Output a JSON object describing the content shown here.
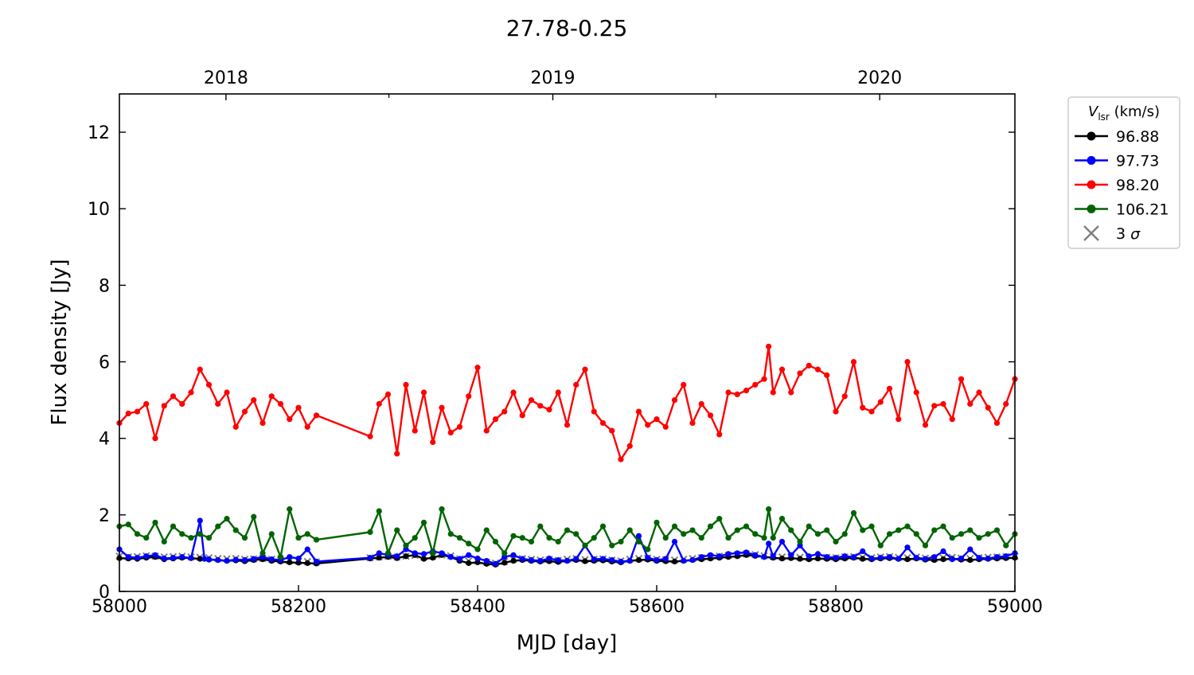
{
  "chart_data": {
    "type": "line",
    "title": "27.78-0.25",
    "xlabel": "MJD [day]",
    "ylabel": "Flux density [Jy]",
    "xlim": [
      58000,
      59000
    ],
    "ylim": [
      0,
      13
    ],
    "xticks": [
      58000,
      58200,
      58400,
      58600,
      58800,
      59000
    ],
    "yticks": [
      0,
      2,
      4,
      6,
      8,
      10,
      12
    ],
    "top_axis": {
      "ticks": [
        {
          "label": "2018",
          "mjd": 58119
        },
        {
          "label": "2019",
          "mjd": 58484
        },
        {
          "label": "2020",
          "mjd": 58849
        }
      ],
      "minor_ticks_mjd": [
        58301,
        58666
      ]
    },
    "grid": false,
    "legend": {
      "position": "outside-right-top",
      "title_main": "V",
      "title_sub": "lsr",
      "title_unit": " (km/s)"
    },
    "series": [
      {
        "name": "96.88",
        "color": "#000000",
        "marker": "circle",
        "x": [
          58000,
          58010,
          58020,
          58030,
          58040,
          58050,
          58060,
          58070,
          58080,
          58090,
          58100,
          58110,
          58120,
          58130,
          58140,
          58150,
          58160,
          58170,
          58180,
          58190,
          58200,
          58210,
          58220,
          58280,
          58290,
          58300,
          58310,
          58320,
          58330,
          58340,
          58350,
          58360,
          58370,
          58380,
          58390,
          58400,
          58410,
          58420,
          58430,
          58440,
          58450,
          58460,
          58470,
          58480,
          58490,
          58500,
          58510,
          58520,
          58530,
          58540,
          58550,
          58560,
          58570,
          58580,
          58590,
          58600,
          58610,
          58620,
          58630,
          58640,
          58650,
          58660,
          58670,
          58680,
          58690,
          58700,
          58710,
          58720,
          58730,
          58740,
          58750,
          58760,
          58770,
          58780,
          58790,
          58800,
          58810,
          58820,
          58830,
          58840,
          58850,
          58860,
          58870,
          58880,
          58890,
          58900,
          58910,
          58920,
          58930,
          58940,
          58950,
          58960,
          58970,
          58980,
          58990,
          59000
        ],
        "y": [
          0.87,
          0.86,
          0.85,
          0.88,
          0.9,
          0.84,
          0.86,
          0.88,
          0.87,
          0.85,
          0.83,
          0.82,
          0.8,
          0.81,
          0.79,
          0.82,
          0.84,
          0.8,
          0.78,
          0.76,
          0.75,
          0.74,
          0.73,
          0.86,
          0.88,
          0.9,
          0.87,
          0.92,
          0.95,
          0.85,
          0.88,
          0.95,
          0.9,
          0.8,
          0.74,
          0.76,
          0.72,
          0.7,
          0.75,
          0.8,
          0.82,
          0.8,
          0.78,
          0.79,
          0.77,
          0.8,
          0.82,
          0.79,
          0.8,
          0.81,
          0.78,
          0.76,
          0.8,
          0.82,
          0.83,
          0.8,
          0.79,
          0.78,
          0.8,
          0.82,
          0.84,
          0.86,
          0.88,
          0.9,
          0.92,
          0.95,
          0.93,
          0.9,
          0.88,
          0.86,
          0.87,
          0.85,
          0.84,
          0.86,
          0.85,
          0.84,
          0.86,
          0.88,
          0.85,
          0.84,
          0.86,
          0.87,
          0.85,
          0.84,
          0.86,
          0.83,
          0.82,
          0.84,
          0.85,
          0.83,
          0.82,
          0.84,
          0.85,
          0.86,
          0.87,
          0.88
        ]
      },
      {
        "name": "97.73",
        "color": "#0000ff",
        "marker": "circle",
        "x": [
          58000,
          58010,
          58020,
          58030,
          58040,
          58050,
          58060,
          58070,
          58080,
          58090,
          58095,
          58100,
          58110,
          58120,
          58130,
          58140,
          58150,
          58160,
          58170,
          58180,
          58190,
          58200,
          58210,
          58220,
          58280,
          58290,
          58300,
          58310,
          58320,
          58330,
          58340,
          58350,
          58360,
          58370,
          58380,
          58390,
          58400,
          58410,
          58420,
          58430,
          58440,
          58450,
          58460,
          58470,
          58480,
          58490,
          58500,
          58510,
          58520,
          58530,
          58540,
          58550,
          58560,
          58570,
          58580,
          58590,
          58600,
          58610,
          58620,
          58630,
          58640,
          58650,
          58660,
          58670,
          58680,
          58690,
          58700,
          58710,
          58720,
          58725,
          58730,
          58740,
          58750,
          58760,
          58770,
          58780,
          58790,
          58800,
          58810,
          58820,
          58830,
          58840,
          58850,
          58860,
          58870,
          58880,
          58890,
          58900,
          58910,
          58920,
          58930,
          58940,
          58950,
          58960,
          58970,
          58980,
          58990,
          59000
        ],
        "y": [
          1.1,
          0.9,
          0.88,
          0.92,
          0.95,
          0.86,
          0.88,
          0.9,
          0.87,
          1.85,
          0.85,
          0.84,
          0.82,
          0.8,
          0.83,
          0.82,
          0.85,
          0.9,
          0.84,
          0.82,
          0.9,
          0.86,
          1.1,
          0.78,
          0.88,
          1.0,
          0.95,
          0.92,
          1.1,
          1.0,
          0.98,
          1.05,
          1.0,
          0.9,
          0.85,
          0.95,
          0.86,
          0.8,
          0.72,
          0.9,
          0.95,
          0.85,
          0.82,
          0.8,
          0.86,
          0.82,
          0.8,
          0.85,
          1.2,
          0.84,
          0.85,
          0.82,
          0.78,
          0.8,
          1.45,
          0.88,
          0.82,
          0.85,
          1.3,
          0.8,
          0.82,
          0.9,
          0.95,
          0.92,
          0.98,
          1.0,
          1.02,
          0.95,
          0.9,
          1.25,
          0.92,
          1.3,
          0.95,
          1.2,
          0.92,
          0.98,
          0.9,
          0.88,
          0.92,
          0.9,
          1.05,
          0.86,
          0.88,
          0.9,
          0.85,
          1.15,
          0.88,
          0.85,
          0.9,
          1.05,
          0.84,
          0.86,
          1.1,
          0.88,
          0.86,
          0.9,
          0.92,
          1.0
        ]
      },
      {
        "name": "98.20",
        "color": "#ff0000",
        "marker": "circle",
        "x": [
          58000,
          58010,
          58020,
          58030,
          58040,
          58050,
          58060,
          58070,
          58080,
          58090,
          58100,
          58110,
          58120,
          58130,
          58140,
          58150,
          58160,
          58170,
          58180,
          58190,
          58200,
          58210,
          58220,
          58280,
          58290,
          58300,
          58310,
          58320,
          58330,
          58340,
          58350,
          58360,
          58370,
          58380,
          58390,
          58400,
          58410,
          58420,
          58430,
          58440,
          58450,
          58460,
          58470,
          58480,
          58490,
          58500,
          58510,
          58520,
          58530,
          58540,
          58550,
          58560,
          58570,
          58580,
          58590,
          58600,
          58610,
          58620,
          58630,
          58640,
          58650,
          58660,
          58670,
          58680,
          58690,
          58700,
          58710,
          58720,
          58725,
          58730,
          58740,
          58750,
          58760,
          58770,
          58780,
          58790,
          58800,
          58810,
          58820,
          58830,
          58840,
          58850,
          58860,
          58870,
          58880,
          58890,
          58900,
          58910,
          58920,
          58930,
          58940,
          58950,
          58960,
          58970,
          58980,
          58990,
          59000
        ],
        "y": [
          4.4,
          4.65,
          4.7,
          4.9,
          4.0,
          4.85,
          5.1,
          4.9,
          5.2,
          5.8,
          5.4,
          4.9,
          5.2,
          4.3,
          4.7,
          5.0,
          4.4,
          5.1,
          4.9,
          4.5,
          4.8,
          4.3,
          4.6,
          4.05,
          4.9,
          5.15,
          3.6,
          5.4,
          4.2,
          5.2,
          3.9,
          4.8,
          4.15,
          4.3,
          5.1,
          5.85,
          4.2,
          4.5,
          4.7,
          5.2,
          4.6,
          5.0,
          4.85,
          4.75,
          5.2,
          4.35,
          5.4,
          5.8,
          4.7,
          4.4,
          4.2,
          3.45,
          3.8,
          4.7,
          4.35,
          4.5,
          4.3,
          5.0,
          5.4,
          4.4,
          4.9,
          4.6,
          4.1,
          5.2,
          5.15,
          5.25,
          5.4,
          5.55,
          6.4,
          5.2,
          5.8,
          5.2,
          5.7,
          5.9,
          5.8,
          5.65,
          4.7,
          5.1,
          6.0,
          4.8,
          4.7,
          4.95,
          5.3,
          4.5,
          6.0,
          5.2,
          4.35,
          4.85,
          4.9,
          4.5,
          5.55,
          4.9,
          5.2,
          4.8,
          4.4,
          4.9,
          5.55
        ]
      },
      {
        "name": "106.21",
        "color": "#006400",
        "marker": "circle",
        "x": [
          58000,
          58010,
          58020,
          58030,
          58040,
          58050,
          58060,
          58070,
          58080,
          58090,
          58100,
          58110,
          58120,
          58130,
          58140,
          58150,
          58160,
          58170,
          58180,
          58190,
          58200,
          58210,
          58220,
          58280,
          58290,
          58300,
          58310,
          58320,
          58330,
          58340,
          58350,
          58360,
          58370,
          58380,
          58390,
          58400,
          58410,
          58420,
          58430,
          58440,
          58450,
          58460,
          58470,
          58480,
          58490,
          58500,
          58510,
          58520,
          58530,
          58540,
          58550,
          58560,
          58570,
          58580,
          58590,
          58600,
          58610,
          58620,
          58630,
          58640,
          58650,
          58660,
          58670,
          58680,
          58690,
          58700,
          58710,
          58720,
          58725,
          58730,
          58740,
          58750,
          58760,
          58770,
          58780,
          58790,
          58800,
          58810,
          58820,
          58830,
          58840,
          58850,
          58860,
          58870,
          58880,
          58890,
          58900,
          58910,
          58920,
          58930,
          58940,
          58950,
          58960,
          58970,
          58980,
          58990,
          59000
        ],
        "y": [
          1.7,
          1.75,
          1.5,
          1.4,
          1.8,
          1.3,
          1.7,
          1.5,
          1.4,
          1.5,
          1.4,
          1.7,
          1.9,
          1.6,
          1.4,
          1.95,
          1.0,
          1.5,
          0.9,
          2.15,
          1.4,
          1.5,
          1.35,
          1.55,
          2.1,
          1.0,
          1.6,
          1.2,
          1.4,
          1.8,
          1.0,
          2.15,
          1.5,
          1.4,
          1.25,
          1.1,
          1.6,
          1.3,
          1.0,
          1.45,
          1.4,
          1.3,
          1.7,
          1.4,
          1.3,
          1.6,
          1.5,
          1.2,
          1.4,
          1.7,
          1.2,
          1.3,
          1.6,
          1.3,
          1.1,
          1.8,
          1.4,
          1.7,
          1.5,
          1.6,
          1.4,
          1.7,
          1.9,
          1.4,
          1.6,
          1.7,
          1.5,
          1.4,
          2.15,
          1.4,
          1.9,
          1.6,
          1.3,
          1.7,
          1.5,
          1.6,
          1.3,
          1.5,
          2.05,
          1.6,
          1.7,
          1.2,
          1.5,
          1.6,
          1.7,
          1.5,
          1.2,
          1.6,
          1.7,
          1.4,
          1.5,
          1.6,
          1.4,
          1.5,
          1.6,
          1.2,
          1.5
        ]
      },
      {
        "name": "3 σ",
        "color": "#808080",
        "marker": "x",
        "line": false,
        "x": [
          58000,
          58010,
          58020,
          58030,
          58040,
          58050,
          58060,
          58070,
          58080,
          58090,
          58100,
          58110,
          58120,
          58130,
          58140,
          58150,
          58160,
          58170,
          58180,
          58190,
          58200,
          58210,
          58220,
          58280,
          58290,
          58300,
          58310,
          58320,
          58330,
          58340,
          58350,
          58360,
          58370,
          58380,
          58390,
          58400,
          58410,
          58420,
          58430,
          58440,
          58450,
          58460,
          58470,
          58480,
          58490,
          58500,
          58510,
          58520,
          58530,
          58540,
          58550,
          58560,
          58570,
          58580,
          58590,
          58600,
          58610,
          58620,
          58630,
          58640,
          58650,
          58660,
          58670,
          58680,
          58690,
          58700,
          58710,
          58720,
          58730,
          58740,
          58750,
          58760,
          58770,
          58780,
          58790,
          58800,
          58810,
          58820,
          58830,
          58840,
          58850,
          58860,
          58870,
          58880,
          58890,
          58900,
          58910,
          58920,
          58930,
          58940,
          58950,
          58960,
          58970,
          58980,
          58990,
          59000
        ],
        "y": [
          0.92,
          0.9,
          0.91,
          0.93,
          0.92,
          0.9,
          0.91,
          0.92,
          0.9,
          0.89,
          0.88,
          0.86,
          0.85,
          0.86,
          0.84,
          0.85,
          0.86,
          0.84,
          0.82,
          0.8,
          0.79,
          0.78,
          0.77,
          0.88,
          0.9,
          0.92,
          0.9,
          0.92,
          0.94,
          0.9,
          0.92,
          0.95,
          0.93,
          0.85,
          0.8,
          0.8,
          0.76,
          0.74,
          0.78,
          0.84,
          0.86,
          0.84,
          0.82,
          0.83,
          0.81,
          0.84,
          0.86,
          0.83,
          0.84,
          0.85,
          0.82,
          0.8,
          0.84,
          0.86,
          0.87,
          0.84,
          0.83,
          0.82,
          0.84,
          0.86,
          0.88,
          0.9,
          0.92,
          0.94,
          0.96,
          0.98,
          0.96,
          0.93,
          0.91,
          0.9,
          0.91,
          0.89,
          0.88,
          0.9,
          0.89,
          0.88,
          0.9,
          0.91,
          0.89,
          0.88,
          0.9,
          0.91,
          0.89,
          0.88,
          0.9,
          0.87,
          0.86,
          0.88,
          0.89,
          0.87,
          0.86,
          0.88,
          0.89,
          0.9,
          0.91,
          0.92
        ]
      }
    ]
  }
}
